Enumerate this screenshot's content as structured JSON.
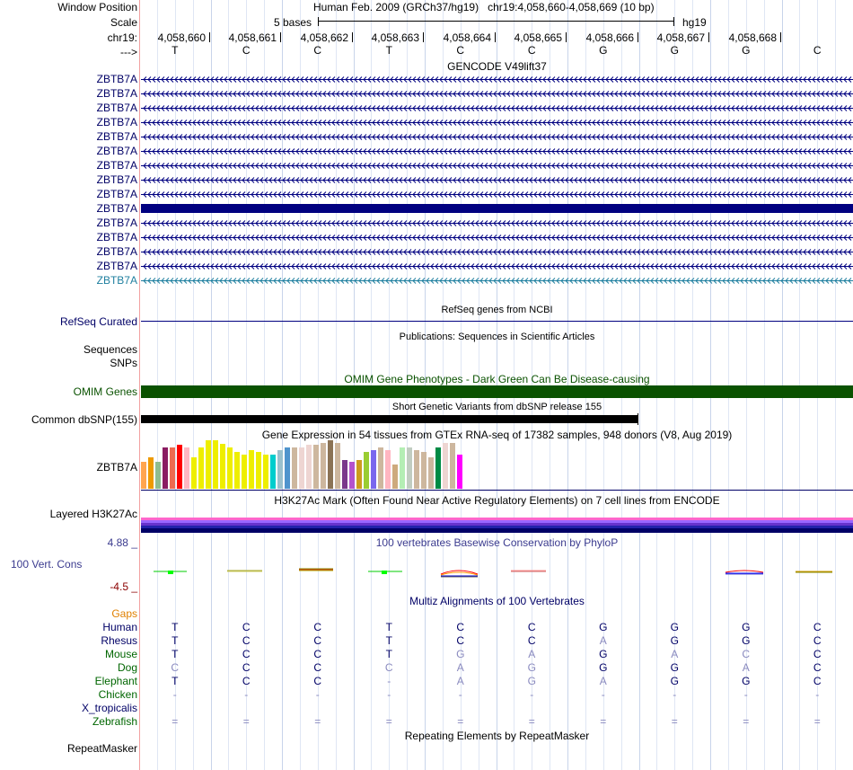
{
  "ruler": {
    "window_position_label": "Window Position",
    "scale_label": "Scale",
    "chrom_label": "chr19:",
    "strand_label": "--->",
    "assembly_title": "Human Feb. 2009 (GRCh37/hg19)",
    "position": "chr19:4,058,660-4,058,669 (10 bp)",
    "scale_text": "5 bases",
    "db": "hg19",
    "positions": [
      "4,058,660",
      "4,058,661",
      "4,058,662",
      "4,058,663",
      "4,058,664",
      "4,058,665",
      "4,058,666",
      "4,058,667",
      "4,058,668"
    ],
    "bases": [
      "T",
      "C",
      "C",
      "T",
      "C",
      "C",
      "G",
      "G",
      "G",
      "C"
    ]
  },
  "gencode": {
    "title": "GENCODE V49lift37",
    "gene_rows": [
      {
        "label": "ZBTB7A",
        "style": "arrows"
      },
      {
        "label": "ZBTB7A",
        "style": "arrows"
      },
      {
        "label": "ZBTB7A",
        "style": "arrows"
      },
      {
        "label": "ZBTB7A",
        "style": "arrows"
      },
      {
        "label": "ZBTB7A",
        "style": "arrows"
      },
      {
        "label": "ZBTB7A",
        "style": "arrows"
      },
      {
        "label": "ZBTB7A",
        "style": "arrows"
      },
      {
        "label": "ZBTB7A",
        "style": "arrows"
      },
      {
        "label": "ZBTB7A",
        "style": "arrows"
      },
      {
        "label": "ZBTB7A",
        "style": "exon"
      },
      {
        "label": "ZBTB7A",
        "style": "arrows"
      },
      {
        "label": "ZBTB7A",
        "style": "arrows"
      },
      {
        "label": "ZBTB7A",
        "style": "arrows"
      },
      {
        "label": "ZBTB7A",
        "style": "arrows"
      },
      {
        "label": "ZBTB7A",
        "style": "arrows-light"
      }
    ]
  },
  "refseq": {
    "title": "RefSeq genes from NCBI",
    "label": "RefSeq Curated"
  },
  "publications": {
    "title": "Publications: Sequences in Scientific Articles",
    "labels": [
      "Sequences",
      "SNPs"
    ]
  },
  "omim": {
    "title": "OMIM Gene Phenotypes - Dark Green Can Be Disease-causing",
    "label": "OMIM Genes",
    "color": "#0a5200"
  },
  "dbsnp": {
    "title": "Short Genetic Variants from dbSNP release 155",
    "label": "Common dbSNP(155)"
  },
  "gtex": {
    "title": "Gene Expression in 54 tissues from GTEx RNA-seq of 17382 samples, 948 donors (V8, Aug 2019)",
    "label": "ZBTB7A",
    "bars": [
      {
        "value": 0.55,
        "color": "#ffa54f"
      },
      {
        "value": 0.65,
        "color": "#ee9a00"
      },
      {
        "value": 0.55,
        "color": "#8fbc8f"
      },
      {
        "value": 0.85,
        "color": "#8b1c62"
      },
      {
        "value": 0.85,
        "color": "#ee6a50"
      },
      {
        "value": 0.9,
        "color": "#ff0000"
      },
      {
        "value": 0.85,
        "color": "#ffb6c1"
      },
      {
        "value": 0.65,
        "color": "#eeee00"
      },
      {
        "value": 0.85,
        "color": "#eeee00"
      },
      {
        "value": 1.0,
        "color": "#eeee00"
      },
      {
        "value": 1.0,
        "color": "#eeee00"
      },
      {
        "value": 0.92,
        "color": "#eeee00"
      },
      {
        "value": 0.85,
        "color": "#eeee00"
      },
      {
        "value": 0.75,
        "color": "#eeee00"
      },
      {
        "value": 0.7,
        "color": "#eeee00"
      },
      {
        "value": 0.8,
        "color": "#eeee00"
      },
      {
        "value": 0.75,
        "color": "#eeee00"
      },
      {
        "value": 0.7,
        "color": "#eeee00"
      },
      {
        "value": 0.7,
        "color": "#00cdcd"
      },
      {
        "value": 0.8,
        "color": "#9ac0cd"
      },
      {
        "value": 0.85,
        "color": "#4f94cd"
      },
      {
        "value": 0.85,
        "color": "#cdb79e"
      },
      {
        "value": 0.85,
        "color": "#eed5d2"
      },
      {
        "value": 0.9,
        "color": "#eed5d2"
      },
      {
        "value": 0.9,
        "color": "#cdb79e"
      },
      {
        "value": 0.95,
        "color": "#cdb79e"
      },
      {
        "value": 1.0,
        "color": "#8b7355"
      },
      {
        "value": 0.95,
        "color": "#cdb79e"
      },
      {
        "value": 0.6,
        "color": "#7a378b"
      },
      {
        "value": 0.55,
        "color": "#b452cd"
      },
      {
        "value": 0.6,
        "color": "#cd9b1d"
      },
      {
        "value": 0.75,
        "color": "#9acd32"
      },
      {
        "value": 0.8,
        "color": "#7a67ee"
      },
      {
        "value": 0.85,
        "color": "#cdb79e"
      },
      {
        "value": 0.8,
        "color": "#ffb6c1"
      },
      {
        "value": 0.5,
        "color": "#cdaa7d"
      },
      {
        "value": 0.85,
        "color": "#b4eeb4"
      },
      {
        "value": 0.85,
        "color": "#c1cdc1"
      },
      {
        "value": 0.8,
        "color": "#cdb79e"
      },
      {
        "value": 0.75,
        "color": "#cdb79e"
      },
      {
        "value": 0.65,
        "color": "#cdb79e"
      },
      {
        "value": 0.85,
        "color": "#008b45"
      },
      {
        "value": 0.95,
        "color": "#eed5d2"
      },
      {
        "value": 0.95,
        "color": "#cdb79e"
      },
      {
        "value": 0.7,
        "color": "#ff00ff"
      }
    ]
  },
  "h3k27ac": {
    "title": "H3K27Ac Mark (Often Found Near Active Regulatory Elements) on 7 cell lines from ENCODE",
    "label": "Layered H3K27Ac"
  },
  "phylop": {
    "title": "100 vertebrates Basewise Conservation by PhyloP",
    "label": "100 Vert. Cons",
    "max_label": "4.88 _",
    "min_label": "-4.5 _"
  },
  "multiz": {
    "title": "Multiz Alignments of 100 Vertebrates",
    "gaps_label": "Gaps",
    "species": [
      {
        "name": "Human",
        "color": "#000066",
        "bases": [
          "T",
          "C",
          "C",
          "T",
          "C",
          "C",
          "G",
          "G",
          "G",
          "C"
        ]
      },
      {
        "name": "Rhesus",
        "color": "#000066",
        "bases": [
          "T",
          "C",
          "C",
          "T",
          "C",
          "C",
          "A",
          "G",
          "G",
          "C"
        ]
      },
      {
        "name": "Mouse",
        "color": "#006600",
        "bases": [
          "T",
          "C",
          "C",
          "T",
          "G",
          "A",
          "G",
          "A",
          "C",
          "C"
        ]
      },
      {
        "name": "Dog",
        "color": "#006600",
        "bases": [
          "C",
          "C",
          "C",
          "C",
          "A",
          "G",
          "G",
          "G",
          "A",
          "C"
        ]
      },
      {
        "name": "Elephant",
        "color": "#006600",
        "bases": [
          "T",
          "C",
          "C",
          "-",
          "A",
          "G",
          "A",
          "G",
          "G",
          "C"
        ]
      },
      {
        "name": "Chicken",
        "color": "#006600",
        "bases": [
          "-",
          "-",
          "-",
          "-",
          "-",
          "-",
          "-",
          "-",
          "-",
          "-"
        ]
      },
      {
        "name": "X_tropicalis",
        "color": "#000066",
        "bases": [
          "",
          "",
          "",
          "",
          "",
          "",
          "",
          "",
          "",
          ""
        ]
      },
      {
        "name": "Zebrafish",
        "color": "#006600",
        "bases": [
          "=",
          "=",
          "=",
          "=",
          "=",
          "=",
          "=",
          "=",
          "=",
          "="
        ]
      }
    ]
  },
  "repeatmasker": {
    "title": "Repeating Elements by RepeatMasker",
    "label": "RepeatMasker"
  },
  "colors": {
    "gene_navy": "#000080",
    "label_navy": "#000066",
    "gaps_orange": "#e08000",
    "light_gene": "#1f7f9f",
    "phylop_blue": "#3b3b8f",
    "phylop_red": "#8b0000"
  }
}
